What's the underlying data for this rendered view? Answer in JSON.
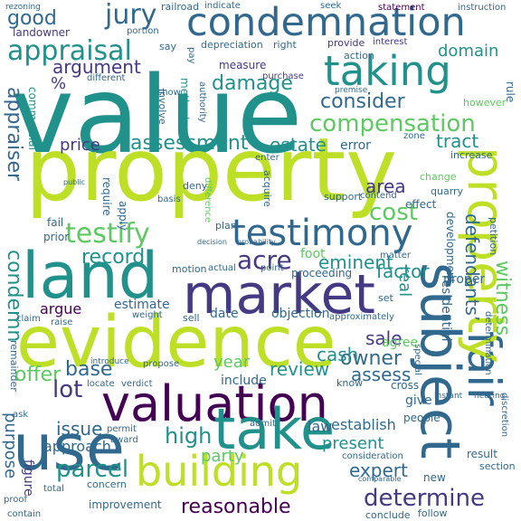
{
  "colors": {
    "lime": "#bddf26",
    "green": "#5ec962",
    "teal": "#21918c",
    "blue": "#31688e",
    "indigo": "#443983",
    "purple": "#440154",
    "background": "#ffffff"
  },
  "words": {
    "value": "value",
    "property": "property",
    "condemnation": "condemnation",
    "taking": "taking",
    "market": "market",
    "land": "land",
    "evidence": "evidence",
    "valuation": "valuation",
    "use": "use",
    "take": "take",
    "building": "building",
    "subject": "subject",
    "fair": "fair",
    "testimony": "testimony",
    "testify": "testify",
    "appraisal": "appraisal",
    "compensation": "compensation",
    "jury": "jury",
    "good": "good",
    "damage": "damage",
    "consider": "consider",
    "appraiser": "appraiser",
    "condemn": "condemn",
    "assessment": "assessment",
    "price": "price",
    "estate": "estate",
    "tract": "tract",
    "record": "record",
    "acre": "acre",
    "eminent": "eminent",
    "cost": "cost",
    "area": "area",
    "domain": "domain",
    "argument": "argument",
    "sale": "sale",
    "witness": "witness",
    "defendants": "defendants’",
    "real": "real",
    "owner": "owner",
    "assess": "assess",
    "cash": "cash",
    "review": "review",
    "year": "year",
    "offer": "offer",
    "lot": "lot",
    "base": "base",
    "issue": "issue",
    "high": "high",
    "party": "party",
    "present": "present",
    "expert": "expert",
    "determine": "determine",
    "reasonable": "reasonable",
    "parcel": "parcel",
    "approach": "approach",
    "purpose": "purpose",
    "figure": "figure",
    "argue": "argue",
    "estimate": "estimate",
    "date": "date",
    "objection": "objection",
    "factor": "factor",
    "foot": "foot",
    "landowner": "landowner",
    "rezoning": "rezoning",
    "railroad": "railroad",
    "indicate": "indicate",
    "seek": "seek",
    "statement": "statement",
    "instruction": "instruction",
    "depreciation": "depreciation",
    "right": "right",
    "provide": "provide",
    "interest": "interest",
    "action": "action",
    "measure": "measure",
    "purchase": "purchase",
    "method": "method",
    "show": "show",
    "involve": "involve",
    "commercial": "commercial",
    "error": "error",
    "require": "require",
    "apply": "apply",
    "contend": "contend",
    "quarry": "quarry",
    "change": "change",
    "increase": "increase",
    "however": "however",
    "rule": "rule",
    "zone": "zone",
    "enter": "enter",
    "support": "support",
    "effect": "effect",
    "acquire": "acquire",
    "deny": "deny",
    "plan": "plan",
    "basis": "basis",
    "difference": "difference",
    "fail": "fail",
    "prior": "prior",
    "proper": "proper",
    "development": "development",
    "petition": "petition",
    "residential": "residential",
    "include": "include",
    "establish": "establish",
    "agree": "agree",
    "know": "know",
    "cross": "cross",
    "give": "give",
    "people": "people",
    "new": "new",
    "result": "result",
    "section": "section",
    "follow": "follow",
    "conclude": "conclude",
    "improvement": "improvement",
    "concern": "concern",
    "remainder": "remainder",
    "sell": "sell",
    "actual": "actual",
    "proceeding": "proceeding",
    "point": "point",
    "weight": "weight",
    "motion": "motion",
    "approximately": "approximately",
    "matter": "matter",
    "raise": "raise",
    "claim": "claim",
    "verdict": "verdict",
    "locate": "locate",
    "propose": "propose",
    "introduce": "introduce",
    "admit": "admit",
    "law": "law",
    "contain": "contain",
    "proof": "proof",
    "ask": "ask",
    "permit": "permit",
    "award": "award",
    "total": "total",
    "consideration": "consideration",
    "comparable": "comparable",
    "discretion": "discretion",
    "determination": "determination",
    "special": "special",
    "hearing": "hearing",
    "instant": "instant",
    "say": "say",
    "portion": "portion",
    "different": "different",
    "pay": "pay",
    "authority": "authority",
    "premise": "premise",
    "percent": "%",
    "decision": "decision",
    "probability": "probability",
    "set": "set",
    "public": "public"
  }
}
